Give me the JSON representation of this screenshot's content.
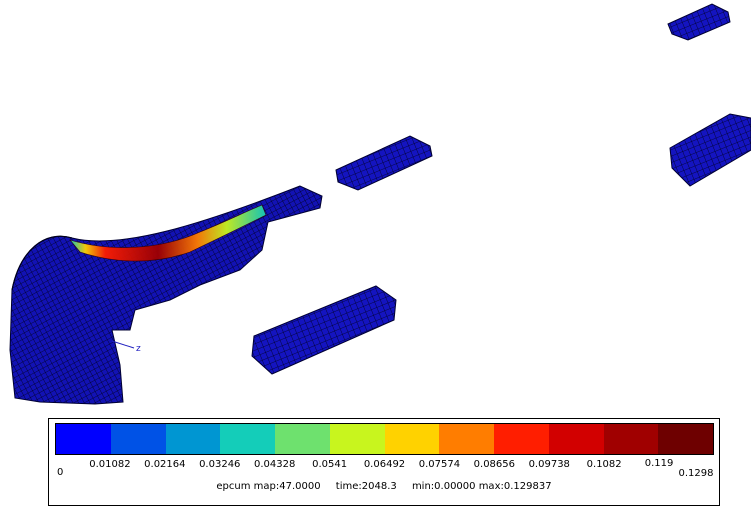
{
  "colors": {
    "mesh_fill": "#1010b8",
    "mesh_line": "#000033",
    "background": "#ffffff",
    "scale": [
      "#0000ff",
      "#0052e6",
      "#0096d2",
      "#14cdb9",
      "#6ee16e",
      "#c8f51e",
      "#ffd200",
      "#ff7d00",
      "#ff1e00",
      "#d20000",
      "#a00000",
      "#6e0000"
    ]
  },
  "axis": {
    "label": "z"
  },
  "legend": {
    "ticks": [
      "0",
      "0.01082",
      "0.02164",
      "0.03246",
      "0.04328",
      "0.0541",
      "0.06492",
      "0.07574",
      "0.08656",
      "0.09738",
      "0.1082",
      "0.119",
      "0.1298"
    ],
    "field": "epcum map:47.0000",
    "time": "time:2048.3",
    "range": "min:0.00000 max:0.129837"
  }
}
